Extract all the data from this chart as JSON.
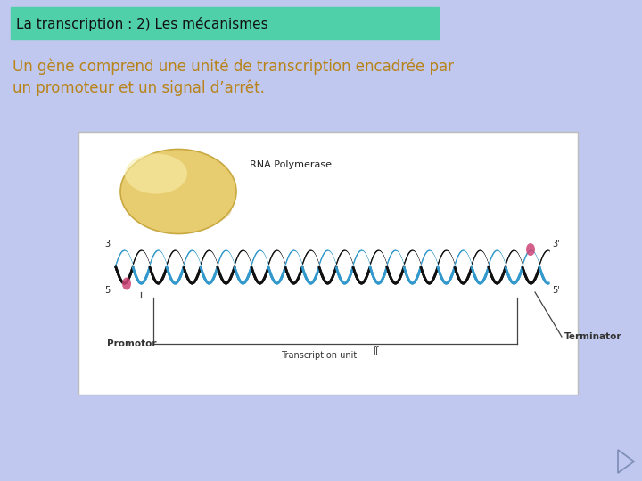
{
  "bg_color": "#c0c8f0",
  "title_text": "La transcription : 2) Les mécanismes",
  "title_bg": "#50d0a8",
  "title_text_color": "#111111",
  "title_fontsize": 11,
  "body_line1": "Un gène comprend une unité de transcription encadrée par",
  "body_line2": "un promoteur et un signal d’arrêt.",
  "body_text_color": "#b8841a",
  "body_fontsize": 12,
  "diagram_bg": "#ffffff",
  "rna_polymerase_label": "RNA Polymerase",
  "strand_blue_color": "#3399cc",
  "strand_black_color": "#111111",
  "strand_pink_color": "#cc4477",
  "promoter_label": "Promotor",
  "terminator_label": "Terminator",
  "transcription_unit_label": "Transcription unit",
  "label_color": "#333333",
  "poly_color_main": "#e8cc70",
  "poly_color_edge": "#c8a840",
  "poly_color_hi": "#f8eeaa",
  "nav_fill": "#c0c8f0",
  "nav_edge": "#8090b8"
}
